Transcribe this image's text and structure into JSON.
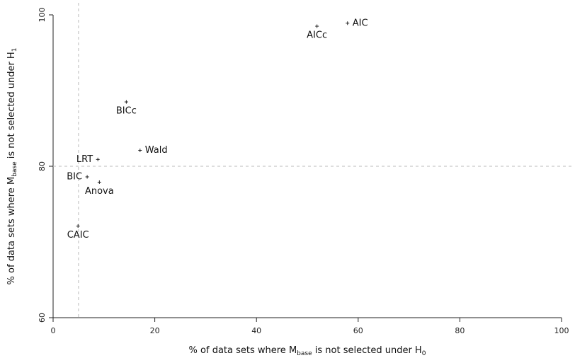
{
  "chart_data": {
    "type": "scatter",
    "title": "",
    "xlabel": {
      "prefix": "% of data sets where M",
      "sub": "base",
      "suffix": " is not selected under H",
      "suffix_sub": "0"
    },
    "ylabel": {
      "prefix": "% of data sets where M",
      "sub": "base",
      "suffix": " is not selected under H",
      "suffix_sub": "1"
    },
    "xlim": [
      0,
      100
    ],
    "ylim": [
      60,
      100
    ],
    "xticks": [
      0,
      20,
      40,
      60,
      80,
      100
    ],
    "yticks": [
      60,
      80,
      100
    ],
    "reference_lines": {
      "x": 5,
      "y": 80
    },
    "points": [
      {
        "label": "AIC",
        "x": 57.9,
        "y": 98.9,
        "label_pos": "right"
      },
      {
        "label": "AICc",
        "x": 51.9,
        "y": 98.5,
        "label_pos": "below"
      },
      {
        "label": "BICc",
        "x": 14.4,
        "y": 88.5,
        "label_pos": "below"
      },
      {
        "label": "Wald",
        "x": 17.1,
        "y": 82.1,
        "label_pos": "right"
      },
      {
        "label": "LRT",
        "x": 8.8,
        "y": 80.9,
        "label_pos": "left"
      },
      {
        "label": "BIC",
        "x": 6.7,
        "y": 78.6,
        "label_pos": "left"
      },
      {
        "label": "Anova",
        "x": 9.1,
        "y": 77.9,
        "label_pos": "below"
      },
      {
        "label": "CAIC",
        "x": 4.9,
        "y": 72.1,
        "label_pos": "below"
      }
    ]
  }
}
